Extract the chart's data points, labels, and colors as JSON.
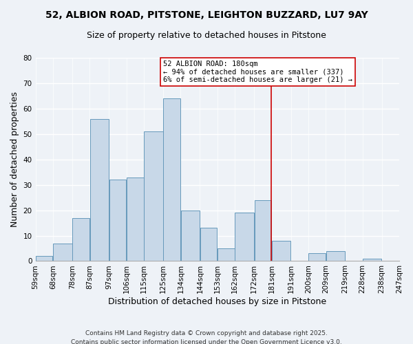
{
  "title_line1": "52, ALBION ROAD, PITSTONE, LEIGHTON BUZZARD, LU7 9AY",
  "title_line2": "Size of property relative to detached houses in Pitstone",
  "xlabel": "Distribution of detached houses by size in Pitstone",
  "ylabel": "Number of detached properties",
  "bar_left_edges": [
    59,
    68,
    78,
    87,
    97,
    106,
    115,
    125,
    134,
    144,
    153,
    162,
    172,
    181,
    191,
    200,
    209,
    219,
    228,
    238
  ],
  "bar_widths": [
    9,
    10,
    9,
    10,
    9,
    9,
    10,
    9,
    10,
    9,
    9,
    10,
    9,
    10,
    9,
    9,
    10,
    9,
    10,
    9
  ],
  "bar_heights": [
    2,
    7,
    17,
    56,
    32,
    33,
    51,
    64,
    20,
    13,
    5,
    19,
    24,
    8,
    0,
    3,
    4,
    0,
    1,
    0
  ],
  "bar_color": "#c8d8e8",
  "bar_edge_color": "#6699bb",
  "tick_labels": [
    "59sqm",
    "68sqm",
    "78sqm",
    "87sqm",
    "97sqm",
    "106sqm",
    "115sqm",
    "125sqm",
    "134sqm",
    "144sqm",
    "153sqm",
    "162sqm",
    "172sqm",
    "181sqm",
    "191sqm",
    "200sqm",
    "209sqm",
    "219sqm",
    "228sqm",
    "238sqm",
    "247sqm"
  ],
  "tick_positions": [
    59,
    68,
    78,
    87,
    97,
    106,
    115,
    125,
    134,
    144,
    153,
    162,
    172,
    181,
    191,
    200,
    209,
    219,
    228,
    238,
    247
  ],
  "ylim": [
    0,
    80
  ],
  "yticks": [
    0,
    10,
    20,
    30,
    40,
    50,
    60,
    70,
    80
  ],
  "vline_x": 181,
  "vline_color": "#cc0000",
  "annotation_line1": "52 ALBION ROAD: 180sqm",
  "annotation_line2": "← 94% of detached houses are smaller (337)",
  "annotation_line3": "6% of semi-detached houses are larger (21) →",
  "footer_line1": "Contains HM Land Registry data © Crown copyright and database right 2025.",
  "footer_line2": "Contains public sector information licensed under the Open Government Licence v3.0.",
  "background_color": "#eef2f7",
  "grid_color": "#ffffff",
  "title_fontsize": 10,
  "subtitle_fontsize": 9,
  "axis_label_fontsize": 9,
  "tick_fontsize": 7.5,
  "annotation_fontsize": 7.5,
  "footer_fontsize": 6.5
}
